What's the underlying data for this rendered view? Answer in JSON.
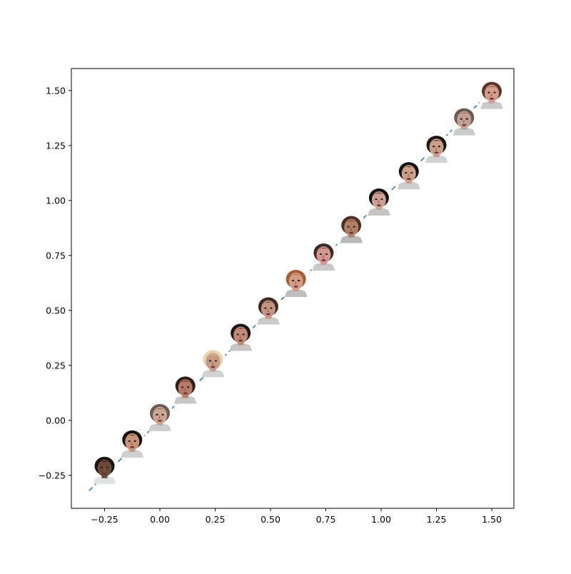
{
  "chart_data": {
    "type": "scatter",
    "title": "",
    "xlabel": "",
    "ylabel": "",
    "xlim": [
      -0.4,
      1.6
    ],
    "ylim": [
      -0.4,
      1.6
    ],
    "grid": false,
    "x_ticks": [
      -0.25,
      0.0,
      0.25,
      0.5,
      0.75,
      1.0,
      1.25,
      1.5
    ],
    "y_ticks": [
      -0.25,
      0.0,
      0.25,
      0.5,
      0.75,
      1.0,
      1.25,
      1.5
    ],
    "x_tick_labels": [
      "−0.25",
      "0.00",
      "0.25",
      "0.50",
      "0.75",
      "1.00",
      "1.25",
      "1.50"
    ],
    "y_tick_labels": [
      "−0.25",
      "0.00",
      "0.25",
      "0.50",
      "0.75",
      "1.00",
      "1.25",
      "1.50"
    ],
    "line": {
      "style": "dashed",
      "color": "#1f77b4",
      "x": [
        -0.32,
        1.52
      ],
      "y": [
        -0.32,
        1.52
      ]
    },
    "markers": {
      "kind": "face-thumbnail",
      "x": [
        -0.25,
        -0.125,
        0.0,
        0.115,
        0.24,
        0.365,
        0.49,
        0.615,
        0.74,
        0.865,
        0.99,
        1.125,
        1.25,
        1.375,
        1.5
      ],
      "y": [
        -0.25,
        -0.13,
        -0.01,
        0.115,
        0.235,
        0.355,
        0.475,
        0.6,
        0.72,
        0.845,
        0.97,
        1.09,
        1.21,
        1.335,
        1.455
      ],
      "faces": [
        {
          "skin": "#6b4a3a",
          "hair": "#1a1412",
          "shirt": "#dfe3e4"
        },
        {
          "skin": "#c8957a",
          "hair": "#141010",
          "shirt": "#cfcfcf"
        },
        {
          "skin": "#c9a594",
          "hair": "#6d5a52",
          "shirt": "#cdcdcd"
        },
        {
          "skin": "#b57b68",
          "hair": "#2e1e16",
          "shirt": "#c8c8c8"
        },
        {
          "skin": "#c79a86",
          "hair": "#e8d4b0",
          "shirt": "#d2d2d2"
        },
        {
          "skin": "#c48876",
          "hair": "#1b1514",
          "shirt": "#c6c6c6"
        },
        {
          "skin": "#c49484",
          "hair": "#3a2a22",
          "shirt": "#cacaca"
        },
        {
          "skin": "#d39c86",
          "hair": "#a25d34",
          "shirt": "#bdbdbd"
        },
        {
          "skin": "#d49690",
          "hair": "#3c2a24",
          "shirt": "#c9c9c9"
        },
        {
          "skin": "#b27f6a",
          "hair": "#4e2f22",
          "shirt": "#b9b9b9"
        },
        {
          "skin": "#caa192",
          "hair": "#101010",
          "shirt": "#c5c5c5"
        },
        {
          "skin": "#cd9e8c",
          "hair": "#121212",
          "shirt": "#cfcfcf"
        },
        {
          "skin": "#c99e8a",
          "hair": "#181412",
          "shirt": "#d2d2d2"
        },
        {
          "skin": "#c3a096",
          "hair": "#6b5a4e",
          "shirt": "#cbcbcb"
        },
        {
          "skin": "#d59c8e",
          "hair": "#5a3828",
          "shirt": "#c9c9c9"
        }
      ]
    }
  }
}
